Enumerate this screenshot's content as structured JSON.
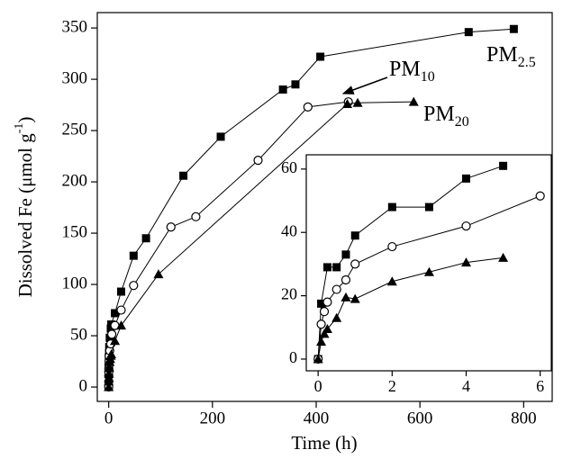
{
  "chart_data": [
    {
      "type": "scatter-line",
      "x_label": "Time (h)",
      "y_label": [
        "Dissolved Fe (μmol g",
        "-1",
        ")"
      ],
      "xlim": [
        -22,
        855
      ],
      "ylim": [
        -14,
        365
      ],
      "xticks": [
        0,
        200,
        400,
        600,
        800
      ],
      "yticks": [
        0,
        50,
        100,
        150,
        200,
        250,
        300,
        350
      ],
      "annotations": [
        {
          "text": "PM",
          "subscript": "2.5"
        },
        {
          "text": "PM",
          "subscript": "10"
        },
        {
          "text": "PM",
          "subscript": "20"
        }
      ],
      "series": [
        {
          "marker": "square",
          "color": "#000000",
          "x": [
            0,
            0.083,
            0.25,
            0.5,
            0.75,
            1,
            2,
            3,
            4,
            5,
            12,
            24,
            48,
            72,
            144,
            216,
            336,
            360,
            408,
            694,
            781
          ],
          "values": [
            0,
            17.5,
            29,
            29,
            33,
            39,
            48,
            48,
            57,
            61,
            72,
            93,
            128,
            145,
            206,
            244,
            290,
            295,
            322,
            346,
            349
          ]
        },
        {
          "marker": "circle-open",
          "color": "#000000",
          "x": [
            0,
            0.083,
            0.167,
            0.25,
            0.5,
            0.75,
            1,
            2,
            4,
            6,
            12,
            24,
            48,
            120,
            168,
            288,
            384,
            462
          ],
          "values": [
            0,
            11,
            15,
            18,
            22,
            25,
            30,
            35.5,
            42,
            51.5,
            60,
            75,
            99,
            156,
            166,
            221,
            273,
            278
          ]
        },
        {
          "marker": "triangle",
          "color": "#000000",
          "x": [
            0,
            0.083,
            0.167,
            0.25,
            0.5,
            0.75,
            1,
            2,
            3,
            4,
            5,
            12,
            24,
            96,
            460,
            480,
            588
          ],
          "values": [
            0,
            5.5,
            8,
            9.5,
            13,
            19.5,
            19,
            24.5,
            27.5,
            30.5,
            32,
            45,
            60,
            110,
            276,
            277,
            278
          ]
        }
      ]
    },
    {
      "type": "scatter-line",
      "xlim": [
        -0.32,
        6.3
      ],
      "ylim": [
        -3.7,
        64.5
      ],
      "xticks": [
        0,
        2,
        4,
        6
      ],
      "yticks": [
        0,
        20,
        40,
        60
      ],
      "series": [
        {
          "marker": "square",
          "color": "#000000",
          "x": [
            0,
            0.083,
            0.25,
            0.5,
            0.75,
            1,
            2,
            3,
            4,
            5
          ],
          "values": [
            0,
            17.5,
            29,
            29,
            33,
            39,
            48,
            48,
            57,
            61
          ]
        },
        {
          "marker": "circle-open",
          "color": "#000000",
          "x": [
            0,
            0.083,
            0.167,
            0.25,
            0.5,
            0.75,
            1,
            2,
            4,
            6
          ],
          "values": [
            0,
            11,
            15,
            18,
            22,
            25,
            30,
            35.5,
            42,
            51.5
          ]
        },
        {
          "marker": "triangle",
          "color": "#000000",
          "x": [
            0,
            0.083,
            0.167,
            0.25,
            0.5,
            0.75,
            1,
            2,
            3,
            4,
            5
          ],
          "values": [
            0,
            5.5,
            8,
            9.5,
            13,
            19.5,
            19,
            24.5,
            27.5,
            30.5,
            32
          ]
        }
      ]
    }
  ]
}
